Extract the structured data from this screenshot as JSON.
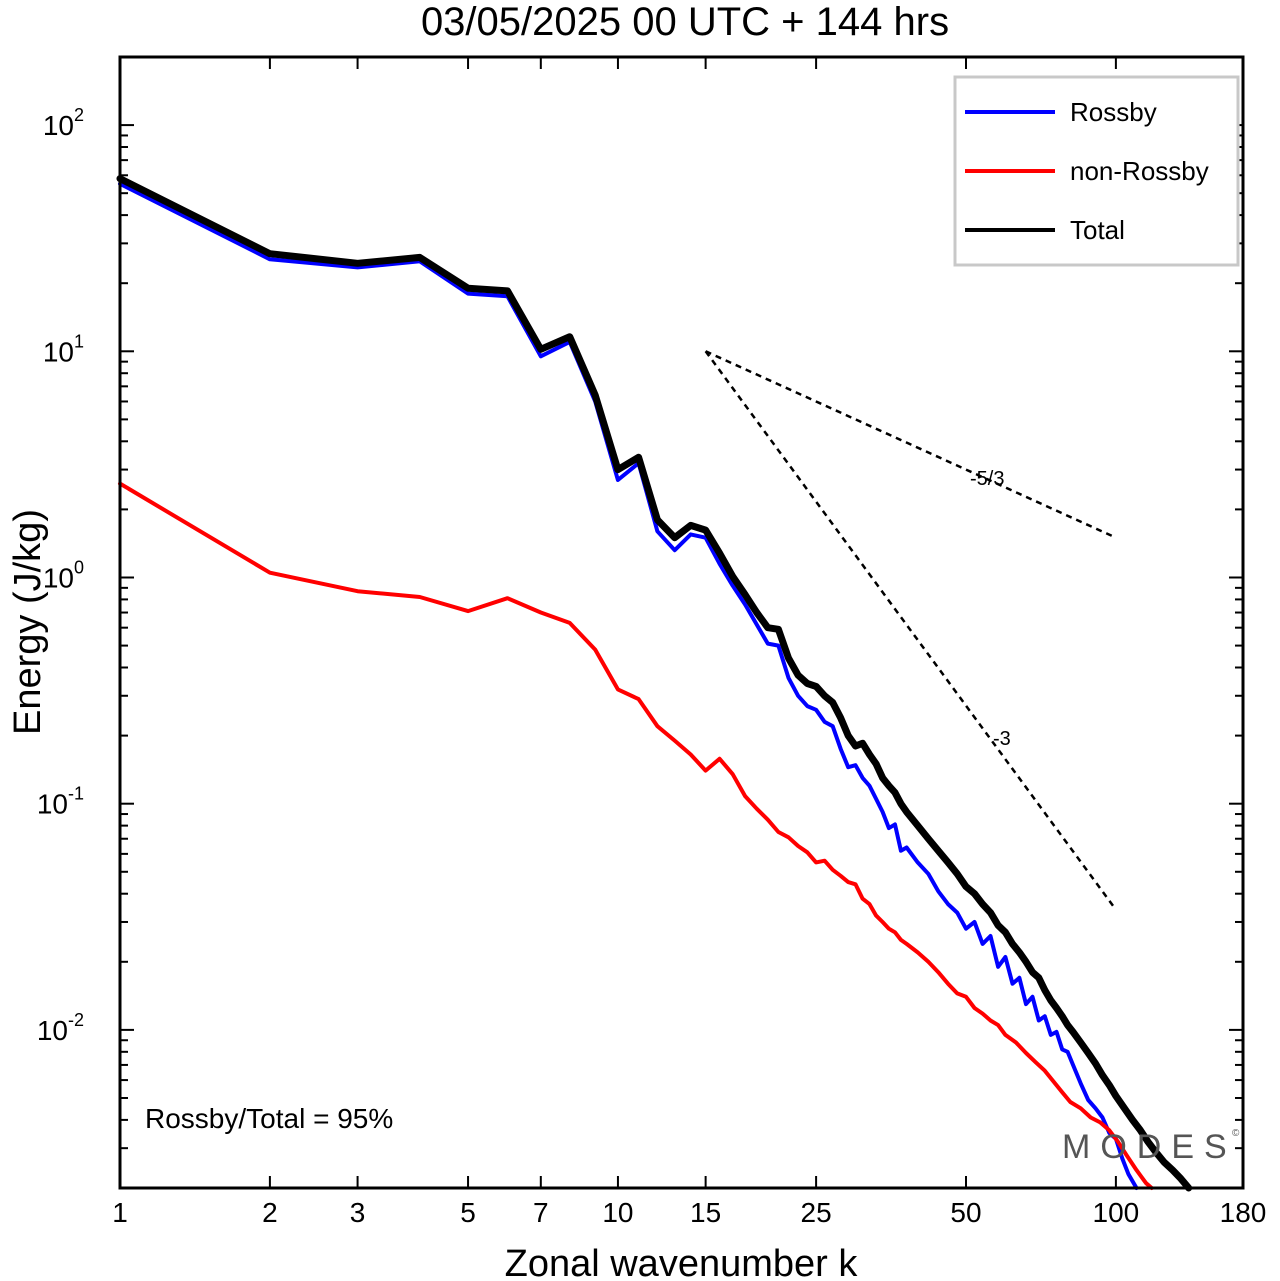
{
  "chart_data": {
    "type": "line",
    "title": "03/05/2025  00 UTC  + 144 hrs",
    "xlabel": "Zonal wavenumber k",
    "ylabel": "Energy (J/kg)",
    "x_scale": "log",
    "y_scale": "log",
    "xlim": [
      1,
      180
    ],
    "ylim": [
      0.002,
      200
    ],
    "x_ticks": [
      1,
      2,
      3,
      5,
      7,
      10,
      15,
      25,
      50,
      100,
      180
    ],
    "y_ticks": [
      {
        "value": 100,
        "base": "10",
        "exp": "2"
      },
      {
        "value": 10,
        "base": "10",
        "exp": "1"
      },
      {
        "value": 1,
        "base": "10",
        "exp": "0"
      },
      {
        "value": 0.1,
        "base": "10",
        "exp": "-1"
      },
      {
        "value": 0.01,
        "base": "10",
        "exp": "-2"
      }
    ],
    "legend_position": "top-right",
    "series": [
      {
        "name": "Rossby",
        "color": "#0000ff",
        "points": [
          [
            1,
            55
          ],
          [
            2,
            25.5
          ],
          [
            3,
            23.5
          ],
          [
            4,
            25
          ],
          [
            5,
            18
          ],
          [
            6,
            17.5
          ],
          [
            7,
            9.5
          ],
          [
            8,
            11
          ],
          [
            9,
            6
          ],
          [
            10,
            2.7
          ],
          [
            11,
            3.2
          ],
          [
            12,
            1.6
          ],
          [
            13,
            1.32
          ],
          [
            14,
            1.55
          ],
          [
            15,
            1.5
          ],
          [
            16,
            1.15
          ],
          [
            17,
            0.92
          ],
          [
            18,
            0.76
          ],
          [
            19,
            0.62
          ],
          [
            20,
            0.51
          ],
          [
            21,
            0.5
          ],
          [
            22,
            0.36
          ],
          [
            23,
            0.3
          ],
          [
            24,
            0.27
          ],
          [
            25,
            0.26
          ],
          [
            26,
            0.23
          ],
          [
            27,
            0.22
          ],
          [
            28,
            0.175
          ],
          [
            29,
            0.145
          ],
          [
            30,
            0.148
          ],
          [
            31,
            0.13
          ],
          [
            32,
            0.12
          ],
          [
            33,
            0.105
          ],
          [
            34,
            0.092
          ],
          [
            35,
            0.078
          ],
          [
            36,
            0.081
          ],
          [
            37,
            0.062
          ],
          [
            38,
            0.064
          ],
          [
            40,
            0.055
          ],
          [
            42,
            0.049
          ],
          [
            44,
            0.041
          ],
          [
            46,
            0.036
          ],
          [
            48,
            0.033
          ],
          [
            50,
            0.028
          ],
          [
            52,
            0.03
          ],
          [
            54,
            0.024
          ],
          [
            56,
            0.026
          ],
          [
            58,
            0.019
          ],
          [
            60,
            0.021
          ],
          [
            62,
            0.016
          ],
          [
            64,
            0.017
          ],
          [
            66,
            0.013
          ],
          [
            68,
            0.014
          ],
          [
            70,
            0.011
          ],
          [
            72,
            0.0115
          ],
          [
            74,
            0.0095
          ],
          [
            76,
            0.0098
          ],
          [
            78,
            0.0082
          ],
          [
            80,
            0.008
          ],
          [
            82,
            0.007
          ],
          [
            85,
            0.0058
          ],
          [
            88,
            0.0049
          ],
          [
            91,
            0.0045
          ],
          [
            94,
            0.0041
          ],
          [
            97,
            0.0035
          ],
          [
            100,
            0.0033
          ],
          [
            103,
            0.0027
          ],
          [
            106,
            0.0023
          ],
          [
            110,
            0.002
          ]
        ]
      },
      {
        "name": "non-Rossby",
        "color": "#ff0000",
        "points": [
          [
            1,
            2.6
          ],
          [
            2,
            1.05
          ],
          [
            3,
            0.87
          ],
          [
            4,
            0.82
          ],
          [
            5,
            0.71
          ],
          [
            6,
            0.81
          ],
          [
            7,
            0.7
          ],
          [
            8,
            0.63
          ],
          [
            9,
            0.48
          ],
          [
            10,
            0.32
          ],
          [
            11,
            0.29
          ],
          [
            12,
            0.22
          ],
          [
            13,
            0.19
          ],
          [
            14,
            0.165
          ],
          [
            15,
            0.14
          ],
          [
            16,
            0.158
          ],
          [
            17,
            0.135
          ],
          [
            18,
            0.108
          ],
          [
            19,
            0.095
          ],
          [
            20,
            0.085
          ],
          [
            21,
            0.075
          ],
          [
            22,
            0.071
          ],
          [
            23,
            0.065
          ],
          [
            24,
            0.061
          ],
          [
            25,
            0.055
          ],
          [
            26,
            0.056
          ],
          [
            27,
            0.051
          ],
          [
            28,
            0.048
          ],
          [
            29,
            0.045
          ],
          [
            30,
            0.044
          ],
          [
            31,
            0.038
          ],
          [
            32,
            0.036
          ],
          [
            33,
            0.032
          ],
          [
            34,
            0.03
          ],
          [
            35,
            0.028
          ],
          [
            36,
            0.027
          ],
          [
            37,
            0.025
          ],
          [
            38,
            0.024
          ],
          [
            40,
            0.022
          ],
          [
            42,
            0.02
          ],
          [
            44,
            0.018
          ],
          [
            46,
            0.016
          ],
          [
            48,
            0.0145
          ],
          [
            50,
            0.014
          ],
          [
            52,
            0.0125
          ],
          [
            54,
            0.0118
          ],
          [
            56,
            0.011
          ],
          [
            58,
            0.0105
          ],
          [
            60,
            0.0095
          ],
          [
            63,
            0.0088
          ],
          [
            66,
            0.0079
          ],
          [
            69,
            0.0072
          ],
          [
            72,
            0.0066
          ],
          [
            75,
            0.0059
          ],
          [
            78,
            0.0053
          ],
          [
            81,
            0.0048
          ],
          [
            85,
            0.0045
          ],
          [
            89,
            0.0041
          ],
          [
            93,
            0.0039
          ],
          [
            97,
            0.0036
          ],
          [
            101,
            0.0032
          ],
          [
            105,
            0.0028
          ],
          [
            110,
            0.0024
          ],
          [
            115,
            0.0021
          ],
          [
            118,
            0.002
          ]
        ]
      },
      {
        "name": "Total",
        "color": "#000000",
        "points": [
          [
            1,
            58
          ],
          [
            2,
            27
          ],
          [
            3,
            24.5
          ],
          [
            4,
            26
          ],
          [
            5,
            19
          ],
          [
            6,
            18.5
          ],
          [
            7,
            10.2
          ],
          [
            8,
            11.6
          ],
          [
            9,
            6.4
          ],
          [
            10,
            3.0
          ],
          [
            11,
            3.4
          ],
          [
            12,
            1.8
          ],
          [
            13,
            1.5
          ],
          [
            14,
            1.7
          ],
          [
            15,
            1.62
          ],
          [
            16,
            1.28
          ],
          [
            17,
            1.01
          ],
          [
            18,
            0.84
          ],
          [
            19,
            0.7
          ],
          [
            20,
            0.6
          ],
          [
            21,
            0.59
          ],
          [
            22,
            0.44
          ],
          [
            23,
            0.37
          ],
          [
            24,
            0.34
          ],
          [
            25,
            0.33
          ],
          [
            26,
            0.3
          ],
          [
            27,
            0.28
          ],
          [
            28,
            0.24
          ],
          [
            29,
            0.2
          ],
          [
            30,
            0.18
          ],
          [
            31,
            0.185
          ],
          [
            32,
            0.165
          ],
          [
            33,
            0.15
          ],
          [
            34,
            0.13
          ],
          [
            35,
            0.12
          ],
          [
            36,
            0.112
          ],
          [
            37,
            0.1
          ],
          [
            38,
            0.092
          ],
          [
            40,
            0.08
          ],
          [
            42,
            0.07
          ],
          [
            44,
            0.062
          ],
          [
            46,
            0.055
          ],
          [
            48,
            0.049
          ],
          [
            50,
            0.043
          ],
          [
            52,
            0.04
          ],
          [
            54,
            0.036
          ],
          [
            56,
            0.033
          ],
          [
            58,
            0.029
          ],
          [
            60,
            0.027
          ],
          [
            62,
            0.024
          ],
          [
            64,
            0.022
          ],
          [
            66,
            0.02
          ],
          [
            68,
            0.018
          ],
          [
            70,
            0.017
          ],
          [
            72,
            0.015
          ],
          [
            74,
            0.0135
          ],
          [
            76,
            0.0125
          ],
          [
            78,
            0.0115
          ],
          [
            80,
            0.0105
          ],
          [
            82,
            0.0098
          ],
          [
            85,
            0.0088
          ],
          [
            88,
            0.0079
          ],
          [
            91,
            0.0071
          ],
          [
            94,
            0.0063
          ],
          [
            97,
            0.0057
          ],
          [
            100,
            0.0051
          ],
          [
            104,
            0.0045
          ],
          [
            108,
            0.004
          ],
          [
            112,
            0.0036
          ],
          [
            116,
            0.0032
          ],
          [
            120,
            0.0029
          ],
          [
            125,
            0.0026
          ],
          [
            130,
            0.0024
          ],
          [
            135,
            0.0022
          ],
          [
            140,
            0.002
          ]
        ]
      }
    ],
    "reference_lines": [
      {
        "label": "-5/3",
        "points": [
          [
            15,
            10
          ],
          [
            100,
            1.5
          ]
        ]
      },
      {
        "label": "-3",
        "points": [
          [
            15,
            10
          ],
          [
            100,
            0.034
          ]
        ]
      }
    ],
    "annotation": "Rossby/Total = 95%",
    "watermark": "MODES"
  }
}
